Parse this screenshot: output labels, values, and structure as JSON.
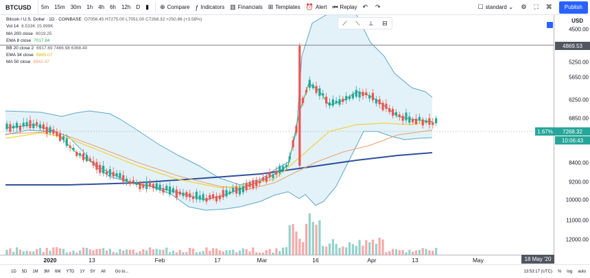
{
  "toolbar": {
    "symbol": "BTCUSD",
    "intervals": [
      "5m",
      "15m",
      "30m",
      "1h",
      "4h",
      "6h",
      "12h",
      "D"
    ],
    "compare": "Compare",
    "indicators": "Indicators",
    "financials": "Financials",
    "templates": "Templates",
    "alert": "Alert",
    "replay": "Replay",
    "layout": "standard",
    "publish": "Publish"
  },
  "legend": {
    "title": "Bitcoin / U.S. Dollar · 1D · COINBASE",
    "ohlc": "O7056.45 H7275.00 L7051.00 C7268.32 +250.86 (+3.58%)",
    "rows": [
      {
        "label": "Vol 14",
        "value": "6.533K  15.999K"
      },
      {
        "label": "MA 200 close",
        "value": "8019.25"
      },
      {
        "label": "EMA 8 close",
        "value": "7017.84"
      },
      {
        "label": "BB 20 close 2",
        "value": "6917.69  7466.98  6368.40"
      },
      {
        "label": "EMA 34 close",
        "value": "6895.07"
      },
      {
        "label": "MA 50 close",
        "value": "6942.47"
      }
    ]
  },
  "price_axis": {
    "currency": "USD",
    "ticks": [
      "4500.00",
      "5250.00",
      "5650.00",
      "6250.00",
      "6850.00",
      "8400.00",
      "9200.00",
      "10000.00",
      "11000.00",
      "12000.00"
    ],
    "crosshair_price": "4869.53",
    "last_price": "7268.32",
    "countdown": "10:06:43",
    "change": "1.67%"
  },
  "time_axis": {
    "ticks": [
      "2020",
      "13",
      "Feb",
      "17",
      "Mar",
      "16",
      "Apr",
      "13",
      "May"
    ],
    "cursor_date": "18 May '20"
  },
  "bottom_bar": {
    "ranges": [
      "1D",
      "5D",
      "1M",
      "3M",
      "6M",
      "YTD",
      "1Y",
      "5Y",
      "All"
    ],
    "goto": "Go to...",
    "clock": "13:53:17 (UTC)",
    "percent": "%",
    "log": "log",
    "auto": "auto"
  },
  "colors": {
    "up": "#26a69a",
    "down": "#ef5350",
    "bb_fill": "#d7edf7",
    "bb_line": "#5aa6c7",
    "ma200": "#2f4f9b",
    "ema8": "#3aa857",
    "ema34": "#f2d13a",
    "ma50": "#e8a06a",
    "accent": "#2962ff"
  }
}
